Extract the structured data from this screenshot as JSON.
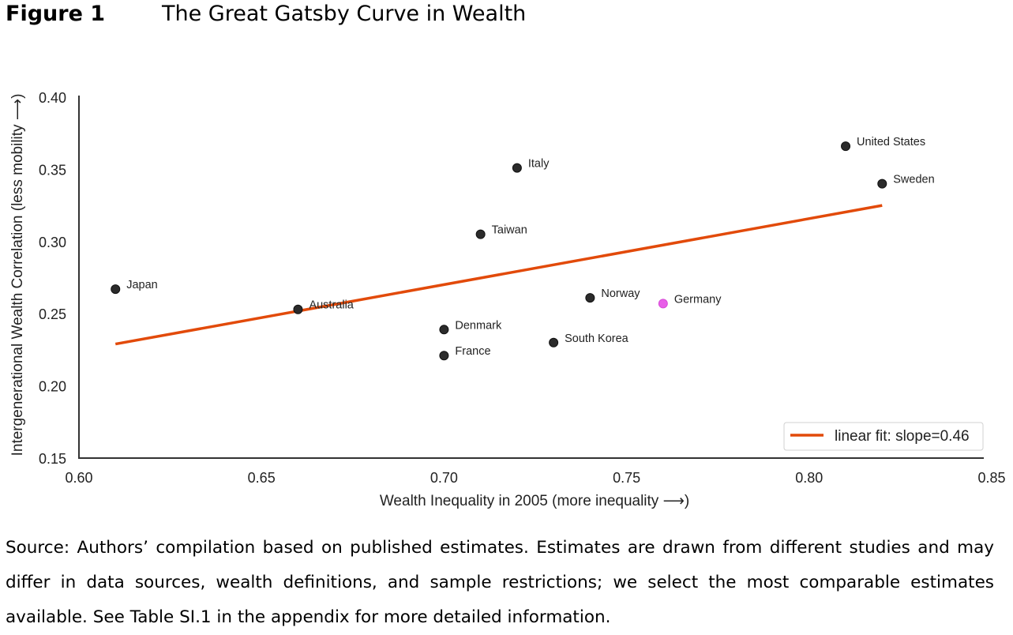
{
  "figure": {
    "label": "Figure 1",
    "title": "The Great Gatsby Curve in Wealth"
  },
  "caption": "Source: Authors’ compilation based on published estimates. Estimates are drawn from different studies and may differ in data sources, wealth definitions, and sample restrictions; we select the most comparable estimates available. See Table SI.1 in the appendix for more detailed information.",
  "chart_data": {
    "type": "scatter",
    "title": "The Great Gatsby Curve in Wealth",
    "xlabel": "Wealth Inequality in 2005 (more inequality ⟶)",
    "ylabel": "Intergenerational Wealth Correlation (less mobility ⟶)",
    "xlim": [
      0.6,
      0.85
    ],
    "ylim": [
      0.15,
      0.4
    ],
    "xticks": [
      "0.60",
      "0.65",
      "0.70",
      "0.75",
      "0.80",
      "0.85"
    ],
    "yticks": [
      "0.15",
      "0.20",
      "0.25",
      "0.30",
      "0.35",
      "0.40"
    ],
    "grid": false,
    "colors": {
      "point": "#2b2b2b",
      "highlight": "#e85ee8",
      "fit": "#e24a0a",
      "axis": "#333333"
    },
    "points": [
      {
        "label": "Japan",
        "x": 0.61,
        "y": 0.267,
        "highlight": false
      },
      {
        "label": "Australia",
        "x": 0.66,
        "y": 0.253,
        "highlight": false
      },
      {
        "label": "Denmark",
        "x": 0.7,
        "y": 0.239,
        "highlight": false
      },
      {
        "label": "France",
        "x": 0.7,
        "y": 0.221,
        "highlight": false
      },
      {
        "label": "Taiwan",
        "x": 0.71,
        "y": 0.305,
        "highlight": false
      },
      {
        "label": "Italy",
        "x": 0.72,
        "y": 0.351,
        "highlight": false
      },
      {
        "label": "South Korea",
        "x": 0.73,
        "y": 0.23,
        "highlight": false
      },
      {
        "label": "Norway",
        "x": 0.74,
        "y": 0.261,
        "highlight": false
      },
      {
        "label": "Germany",
        "x": 0.76,
        "y": 0.257,
        "highlight": true
      },
      {
        "label": "United States",
        "x": 0.81,
        "y": 0.366,
        "highlight": false
      },
      {
        "label": "Sweden",
        "x": 0.82,
        "y": 0.34,
        "highlight": false
      }
    ],
    "fit_line": {
      "x": [
        0.61,
        0.82
      ],
      "y": [
        0.229,
        0.325
      ],
      "slope": 0.46
    },
    "legend": {
      "entries": [
        "linear fit: slope=0.46"
      ],
      "position": "lower-right"
    }
  }
}
